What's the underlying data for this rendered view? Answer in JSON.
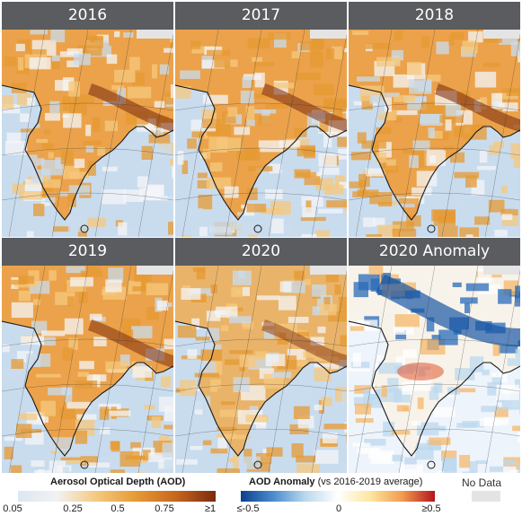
{
  "panels": [
    {
      "title": "2016",
      "kind": "aod",
      "level": 0.62
    },
    {
      "title": "2017",
      "kind": "aod",
      "level": 0.6
    },
    {
      "title": "2018",
      "kind": "aod",
      "level": 0.64
    },
    {
      "title": "2019",
      "kind": "aod",
      "level": 0.57
    },
    {
      "title": "2020",
      "kind": "aod",
      "level": 0.4
    },
    {
      "title": "2020 Anomaly",
      "kind": "anomaly",
      "level": -0.2
    }
  ],
  "legend_aod": {
    "title": "Aerosol Optical Depth (AOD)",
    "ticks": [
      "0.05",
      "0.25",
      "0.5",
      "0.75",
      "≥1"
    ],
    "colors": [
      "#dbe7f2",
      "#f2f2f2",
      "#f5c87e",
      "#e59a33",
      "#c7661d",
      "#7a2a0e"
    ]
  },
  "legend_anomaly": {
    "title": "AOD Anomaly",
    "subtitle": "(vs 2016-2019 average)",
    "ticks": [
      "≤-0.5",
      "0",
      "≥0.5"
    ],
    "colors": [
      "#0d3f8f",
      "#4a8ccf",
      "#bcd8ee",
      "#ffffff",
      "#fde7a0",
      "#f29a4e",
      "#b4141c"
    ]
  },
  "no_data_label": "No Data",
  "colors": {
    "title_bar": "#5b5c5f",
    "ocean": "#c9dcee",
    "no_data": "#e4e4e4",
    "coastline": "#1a1a1a"
  }
}
